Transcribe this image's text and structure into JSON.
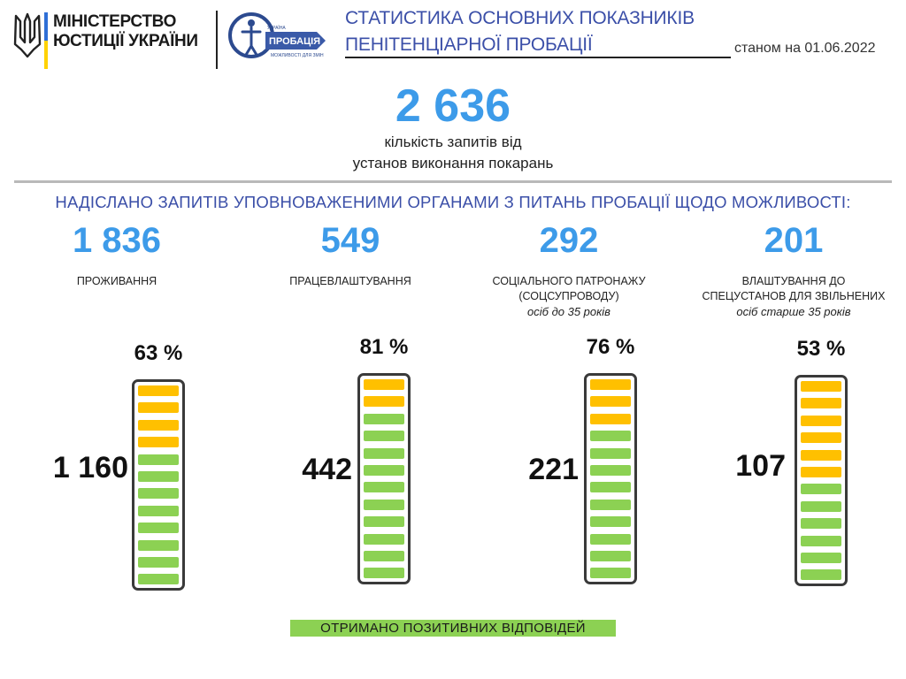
{
  "header": {
    "ministry_line1": "МІНІСТЕРСТВО",
    "ministry_line2": "ЮСТИЦІЇ УКРАЇНИ",
    "probation_logo_main": "ПРОБАЦІЯ",
    "probation_logo_top": "УКРАЇНА",
    "probation_logo_bottom": "МОЖЛИВОСТІ ДЛЯ ЗМІН",
    "title_line1": "СТАТИСТИКА ОСНОВНИХ ПОКАЗНИКІВ",
    "title_line2": "ПЕНІТЕНЦІАРНОЇ ПРОБАЦІЇ",
    "date_line": "станом на 01.06.2022"
  },
  "total": {
    "value": "2 636",
    "caption_line1": "кількість запитів від",
    "caption_line2": "установ виконання покарань"
  },
  "subtitle": "НАДІСЛАНО ЗАПИТІВ УПОВНОВАЖЕНИМИ ОРГАНАМИ З ПИТАНЬ ПРОБАЦІЇ  ЩОДО МОЖЛИВОСТІ:",
  "legend": "ОТРИМАНО  ПОЗИТИВНИХ ВІДПОВІДЕЙ",
  "colors": {
    "accent_blue": "#3d9be9",
    "title_blue": "#3b4fa8",
    "positive": "#8cd153",
    "requests": "#ffc000"
  },
  "chart_data": {
    "type": "bar",
    "title": "",
    "series": [
      {
        "name": "ОТРИМАНО  ПОЗИТИВНИХ ВІДПОВІДЕЙ",
        "color": "#8cd153"
      }
    ],
    "items": [
      {
        "value": "1 836",
        "requests": 1836,
        "positive": 1160,
        "positive_label": "1 160",
        "percent": 63,
        "percent_label": "63 %",
        "label_line1": "ПРОЖИВАННЯ",
        "label_line2": "",
        "note": ""
      },
      {
        "value": "549",
        "requests": 549,
        "positive": 442,
        "positive_label": "442",
        "percent": 81,
        "percent_label": "81 %",
        "label_line1": "ПРАЦЕВЛАШТУВАННЯ",
        "label_line2": "",
        "note": ""
      },
      {
        "value": "292",
        "requests": 292,
        "positive": 221,
        "positive_label": "221",
        "percent": 76,
        "percent_label": "76 %",
        "label_line1": "СОЦІАЛЬНОГО ПАТРОНАЖУ",
        "label_line2": "(СОЦСУПРОВОДУ)",
        "note": "осіб до 35 років"
      },
      {
        "value": "201",
        "requests": 201,
        "positive": 107,
        "positive_label": "107",
        "percent": 53,
        "percent_label": "53 %",
        "label_line1": "ВЛАШТУВАННЯ ДО",
        "label_line2": "СПЕЦУСТАНОВ ДЛЯ ЗВІЛЬНЕНИХ",
        "note": "осіб старше 35 років"
      }
    ]
  }
}
